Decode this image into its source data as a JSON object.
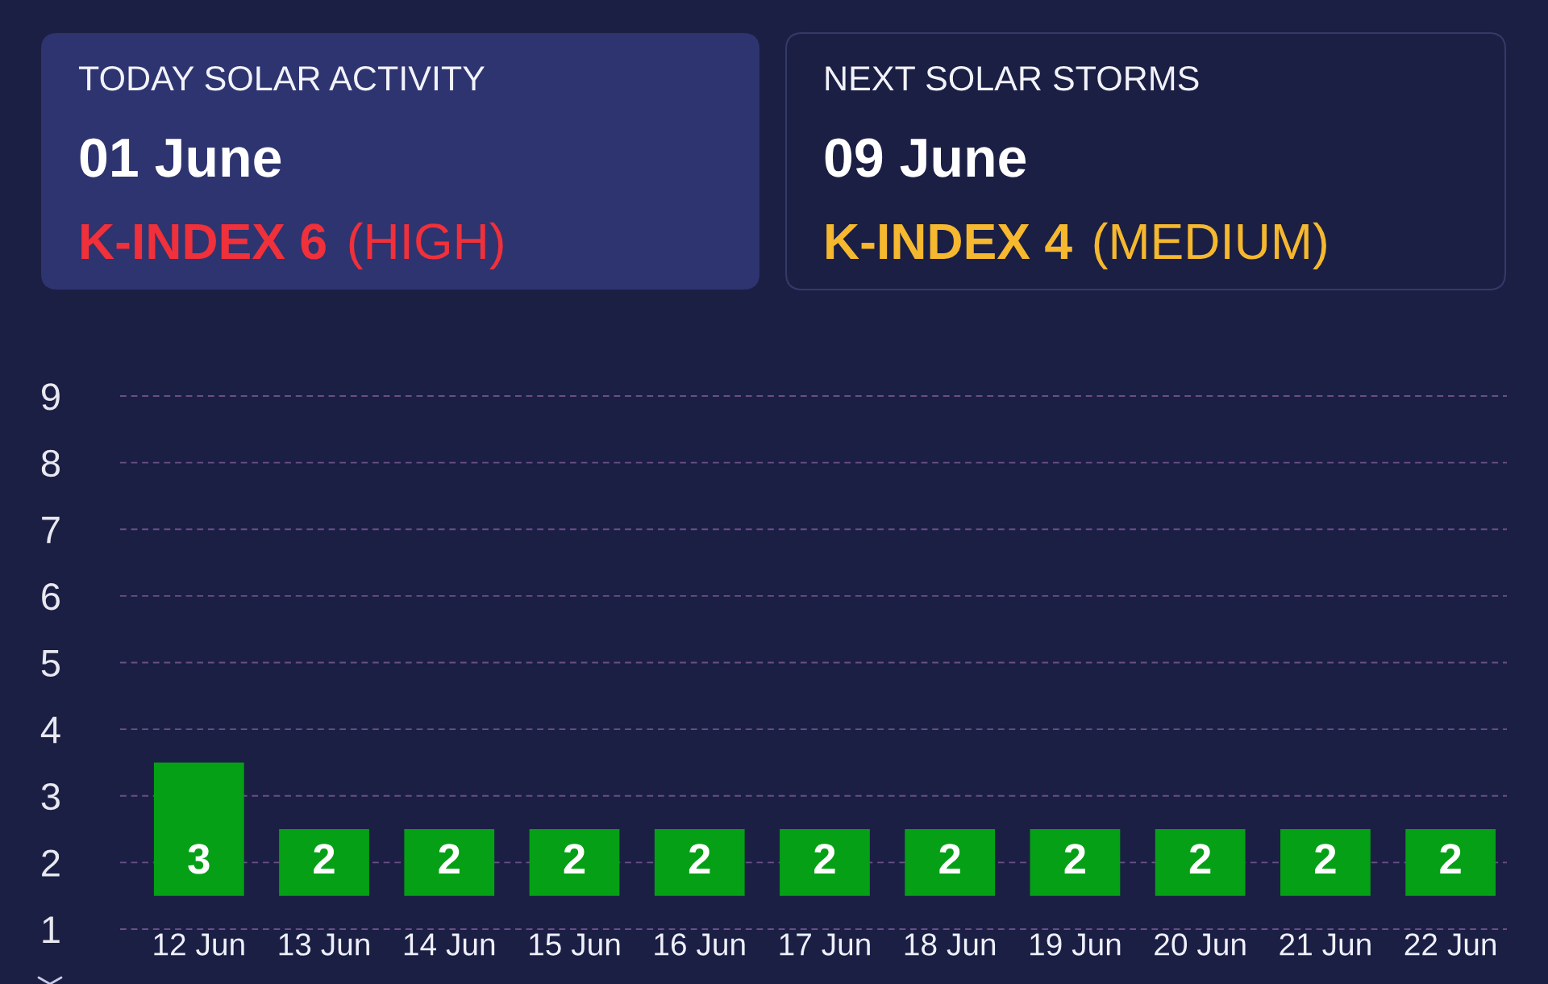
{
  "chart_data": [
    {
      "type": "other",
      "title": "TODAY SOLAR ACTIVITY",
      "subtitle": "01 June",
      "annotations": [
        "K-INDEX 6",
        "(HIGH)"
      ],
      "colors": [
        "#2e3470",
        "#f0303a"
      ]
    },
    {
      "type": "other",
      "title": "NEXT SOLAR STORMS",
      "subtitle": "09 June",
      "annotations": [
        "K-INDEX 4",
        "(MEDIUM)"
      ],
      "colors": [
        null,
        "#f5b82e"
      ]
    },
    {
      "type": "bar",
      "categories": [
        "12 Jun",
        "13 Jun",
        "14 Jun",
        "15 Jun",
        "16 Jun",
        "17 Jun",
        "18 Jun",
        "19 Jun",
        "20 Jun",
        "21 Jun",
        "22 Jun"
      ],
      "base": [
        1.5,
        1.5,
        1.5,
        1.5,
        1.5,
        1.5,
        1.5,
        1.5,
        1.5,
        1.5,
        1.5
      ],
      "values": [
        2,
        1,
        1,
        1,
        1,
        1,
        1,
        1,
        1,
        1,
        1
      ],
      "value_labels": [
        "3",
        "2",
        "2",
        "2",
        "2",
        "2",
        "2",
        "2",
        "2",
        "2",
        "2"
      ],
      "color": "#05a015",
      "ylim": [
        1,
        9
      ],
      "yticks": [
        1,
        2,
        3,
        4,
        5,
        6,
        7,
        8,
        9
      ],
      "grid": "y",
      "line_style": "dashed"
    }
  ]
}
